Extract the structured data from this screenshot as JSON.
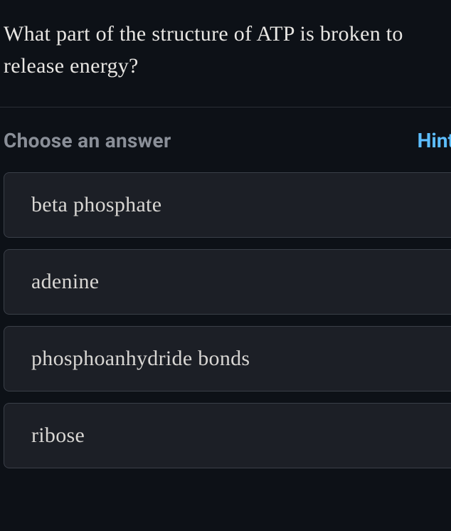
{
  "question": {
    "text": "What part of the structure of ATP is broken to release energy?",
    "text_color": "#e8e6e3",
    "font_size": 30
  },
  "prompt": {
    "label": "Choose an answer",
    "color": "#8a8f98"
  },
  "hint": {
    "label": "Hint",
    "color": "#5dbeff"
  },
  "answers": [
    {
      "label": "beta phosphate"
    },
    {
      "label": "adenine"
    },
    {
      "label": "phosphoanhydride bonds"
    },
    {
      "label": "ribose"
    }
  ],
  "colors": {
    "background": "#0d1117",
    "option_background": "#1c1f26",
    "option_border": "#3a3f48",
    "option_text": "#d8d6d3",
    "divider": "#2a2e35"
  }
}
